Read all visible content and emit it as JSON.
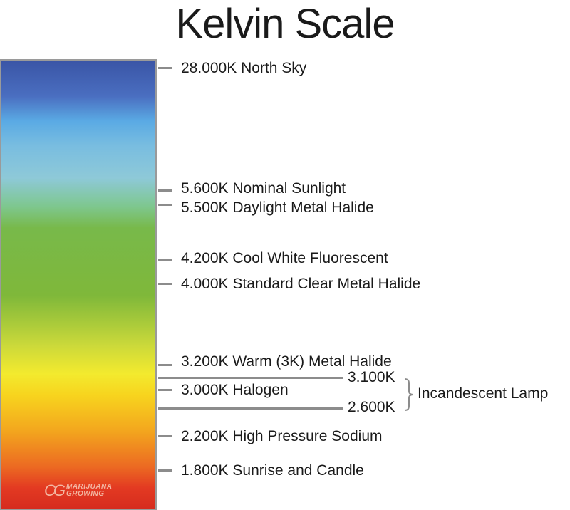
{
  "title": "Kelvin Scale",
  "markers": [
    {
      "kelvin": 28000,
      "label": "28.000K North Sky"
    },
    {
      "kelvin": 5600,
      "label": "5.600K Nominal Sunlight"
    },
    {
      "kelvin": 5500,
      "label": "5.500K Daylight Metal Halide"
    },
    {
      "kelvin": 4200,
      "label": "4.200K Cool White Fluorescent"
    },
    {
      "kelvin": 4000,
      "label": "4.000K Standard Clear Metal Halide"
    },
    {
      "kelvin": 3200,
      "label": "3.200K Warm (3K) Metal Halide"
    },
    {
      "kelvin": 3000,
      "label": "3.000K Halogen"
    },
    {
      "kelvin": 2200,
      "label": "2.200K High Pressure Sodium"
    },
    {
      "kelvin": 1800,
      "label": "1.800K Sunrise and Candle"
    }
  ],
  "range": {
    "upper": "3.100K",
    "lower": "2.600K",
    "label": "Incandescent Lamp"
  },
  "logo": {
    "mark": "CG",
    "line1": "MARIJUANA",
    "line2": "GROWING"
  },
  "colors": {
    "tick": "#8c8c8c",
    "text": "#1a1a1a",
    "bar_top": "#3a55a6",
    "bar_mid": "#7fb83a",
    "bar_yellow": "#f3ea2e",
    "bar_bottom": "#d42a1e"
  }
}
